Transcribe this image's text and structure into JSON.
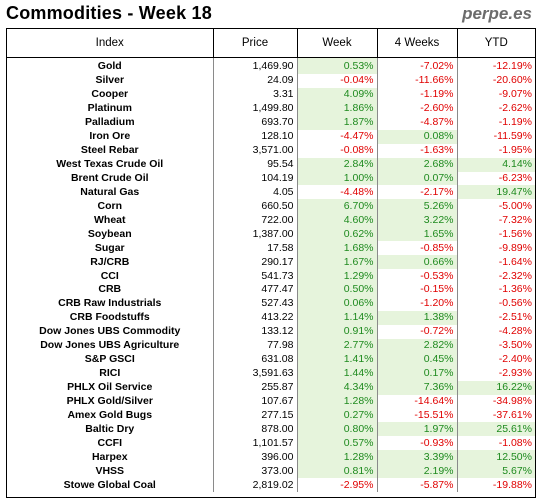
{
  "header": {
    "title": "Commodities - Week 18",
    "brand": "perpe.es"
  },
  "columns": [
    "Index",
    "Price",
    "Week",
    "4 Weeks",
    "YTD"
  ],
  "rows": [
    [
      "Gold",
      "1,469.90",
      "0.53%",
      "-7.02%",
      "-12.19%"
    ],
    [
      "Silver",
      "24.09",
      "-0.04%",
      "-11.66%",
      "-20.60%"
    ],
    [
      "Cooper",
      "3.31",
      "4.09%",
      "-1.19%",
      "-9.07%"
    ],
    [
      "Platinum",
      "1,499.80",
      "1.86%",
      "-2.60%",
      "-2.62%"
    ],
    [
      "Palladium",
      "693.70",
      "1.87%",
      "-4.87%",
      "-1.19%"
    ],
    [
      "Iron Ore",
      "128.10",
      "-4.47%",
      "0.08%",
      "-11.59%"
    ],
    [
      "Steel Rebar",
      "3,571.00",
      "-0.08%",
      "-1.63%",
      "-1.95%"
    ],
    [
      "West Texas Crude Oil",
      "95.54",
      "2.84%",
      "2.68%",
      "4.14%"
    ],
    [
      "Brent Crude Oil",
      "104.19",
      "1.00%",
      "0.07%",
      "-6.23%"
    ],
    [
      "Natural Gas",
      "4.05",
      "-4.48%",
      "-2.17%",
      "19.47%"
    ],
    [
      "Corn",
      "660.50",
      "6.70%",
      "5.26%",
      "-5.00%"
    ],
    [
      "Wheat",
      "722.00",
      "4.60%",
      "3.22%",
      "-7.32%"
    ],
    [
      "Soybean",
      "1,387.00",
      "0.62%",
      "1.65%",
      "-1.56%"
    ],
    [
      "Sugar",
      "17.58",
      "1.68%",
      "-0.85%",
      "-9.89%"
    ],
    [
      "RJ/CRB",
      "290.17",
      "1.67%",
      "0.66%",
      "-1.64%"
    ],
    [
      "CCI",
      "541.73",
      "1.29%",
      "-0.53%",
      "-2.32%"
    ],
    [
      "CRB",
      "477.47",
      "0.50%",
      "-0.15%",
      "-1.36%"
    ],
    [
      "CRB Raw Industrials",
      "527.43",
      "0.06%",
      "-1.20%",
      "-0.56%"
    ],
    [
      "CRB Foodstuffs",
      "413.22",
      "1.14%",
      "1.38%",
      "-2.51%"
    ],
    [
      "Dow Jones UBS Commodity",
      "133.12",
      "0.91%",
      "-0.72%",
      "-4.28%"
    ],
    [
      "Dow Jones UBS Agriculture",
      "77.98",
      "2.77%",
      "2.82%",
      "-3.50%"
    ],
    [
      "S&P GSCI",
      "631.08",
      "1.41%",
      "0.45%",
      "-2.40%"
    ],
    [
      "RICI",
      "3,591.63",
      "1.44%",
      "0.17%",
      "-2.93%"
    ],
    [
      "PHLX Oil Service",
      "255.87",
      "4.34%",
      "7.36%",
      "16.22%"
    ],
    [
      "PHLX Gold/Silver",
      "107.67",
      "1.28%",
      "-14.64%",
      "-34.98%"
    ],
    [
      "Amex Gold Bugs",
      "277.15",
      "0.27%",
      "-15.51%",
      "-37.61%"
    ],
    [
      "Baltic Dry",
      "878.00",
      "0.80%",
      "1.97%",
      "25.61%"
    ],
    [
      "CCFI",
      "1,101.57",
      "0.57%",
      "-0.93%",
      "-1.08%"
    ],
    [
      "Harpex",
      "396.00",
      "1.28%",
      "3.39%",
      "12.50%"
    ],
    [
      "VHSS",
      "373.00",
      "0.81%",
      "2.19%",
      "5.67%"
    ],
    [
      "Stowe Global Coal",
      "2,819.02",
      "-2.95%",
      "-5.87%",
      "-19.88%"
    ]
  ]
}
